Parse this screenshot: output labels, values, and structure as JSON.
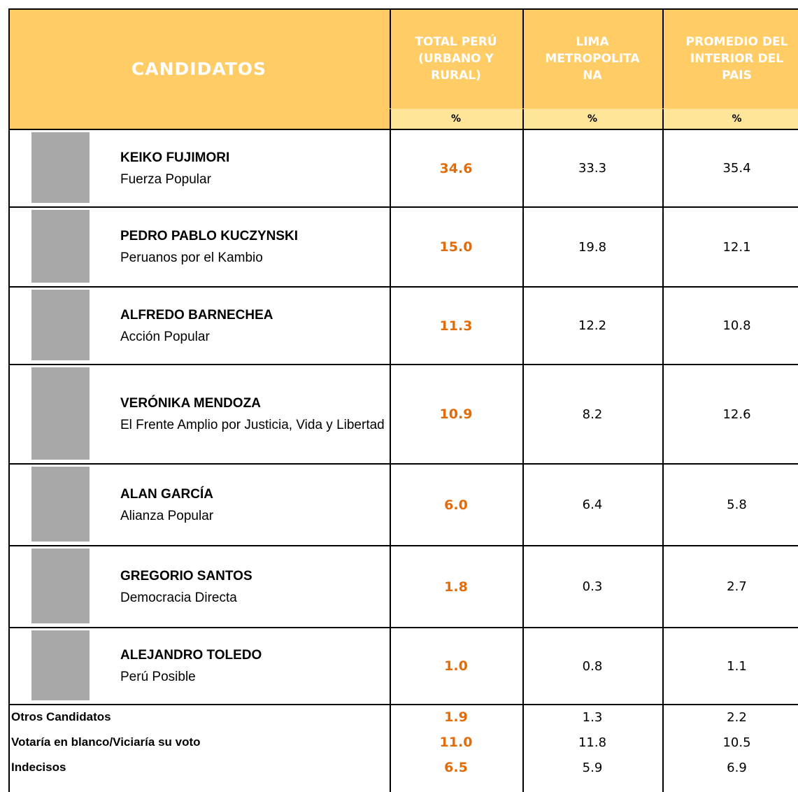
{
  "header": {
    "title": "CANDIDATOS",
    "columns": [
      {
        "lines": [
          "TOTAL PERÚ",
          "(URBANO Y",
          "RURAL)"
        ],
        "unit": "%"
      },
      {
        "lines": [
          "LIMA",
          "METROPOLITA",
          "NA"
        ],
        "unit": "%"
      },
      {
        "lines": [
          "PROMEDIO DEL",
          "INTERIOR DEL",
          "PAIS"
        ],
        "unit": "%"
      }
    ]
  },
  "candidates": [
    {
      "name": "KEIKO FUJIMORI",
      "party": "Fuerza Popular",
      "values": [
        "34.6",
        "33.3",
        "35.4"
      ]
    },
    {
      "name": "PEDRO PABLO KUCZYNSKI",
      "party": "Peruanos por el Kambio",
      "values": [
        "15.0",
        "19.8",
        "12.1"
      ]
    },
    {
      "name": "ALFREDO BARNECHEA",
      "party": "Acción Popular",
      "values": [
        "11.3",
        "12.2",
        "10.8"
      ]
    },
    {
      "name": "VERÓNIKA MENDOZA",
      "party": "El Frente Amplio por Justicia, Vida y Libertad",
      "values": [
        "10.9",
        "8.2",
        "12.6"
      ]
    },
    {
      "name": "ALAN GARCÍA",
      "party": "Alianza Popular",
      "values": [
        "6.0",
        "6.4",
        "5.8"
      ]
    },
    {
      "name": "GREGORIO SANTOS",
      "party": "Democracia Directa",
      "values": [
        "1.8",
        "0.3",
        "2.7"
      ]
    },
    {
      "name": "ALEJANDRO TOLEDO",
      "party": "Perú Posible",
      "values": [
        "1.0",
        "0.8",
        "1.1"
      ]
    }
  ],
  "others": [
    {
      "label": "Otros Candidatos",
      "values": [
        "1.9",
        "1.3",
        "2.2"
      ]
    },
    {
      "label": "Votaría en blanco/Viciaría su voto",
      "values": [
        "11.0",
        "11.8",
        "10.5"
      ]
    },
    {
      "label": "Indecisos",
      "values": [
        "6.5",
        "5.9",
        "6.9"
      ]
    }
  ]
}
